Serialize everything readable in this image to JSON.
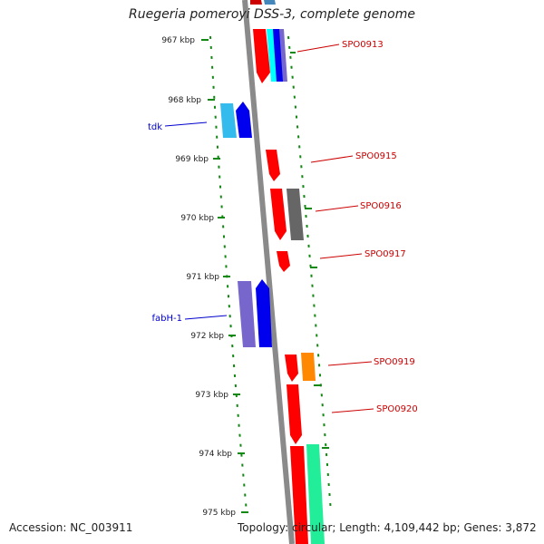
{
  "header": {
    "title": "Ruegeria pomeroyi DSS-3, complete genome"
  },
  "footer": {
    "accession": "Accession: NC_003911",
    "summary": "Topology: circular; Length: 4,109,442 bp; Genes: 3,872"
  },
  "ruler": {
    "ticks": [
      "967 kbp",
      "968 kbp",
      "969 kbp",
      "970 kbp",
      "971 kbp",
      "972 kbp",
      "973 kbp",
      "974 kbp",
      "975 kbp"
    ]
  },
  "colors": {
    "red": "#ff0000",
    "darkred": "#cc0000",
    "blue": "#0000ee",
    "lightblue": "#33bbee",
    "cyan": "#00ffff",
    "purple": "#7766cc",
    "gray": "#666666",
    "orange": "#ff8800",
    "aquamarine": "#22ee99",
    "steelblue": "#4488bb",
    "backbone": "#888888",
    "tick": "#118811",
    "label_blue": "#0000cc",
    "label_red": "#cc0000"
  },
  "labels": [
    {
      "text": "SPO0913",
      "color": "red"
    },
    {
      "text": "tdk",
      "color": "blue"
    },
    {
      "text": "SPO0915",
      "color": "red"
    },
    {
      "text": "SPO0916",
      "color": "red"
    },
    {
      "text": "SPO0917",
      "color": "red"
    },
    {
      "text": "fabH-1",
      "color": "blue"
    },
    {
      "text": "SPO0919",
      "color": "red"
    },
    {
      "text": "SPO0920",
      "color": "red"
    }
  ]
}
